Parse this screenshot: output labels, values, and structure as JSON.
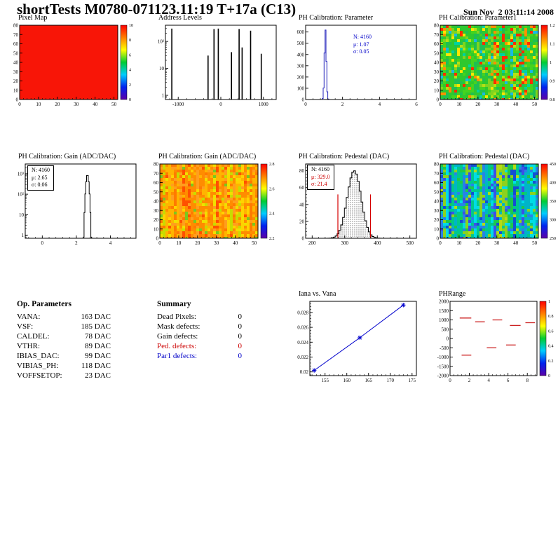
{
  "header": {
    "title": "shortTests M0780-071123.11:19 T+17a (C13)",
    "datetime": "Sun Nov  2 03:11:14 2008"
  },
  "chart_data": [
    {
      "id": "pixel_map",
      "type": "heatmap",
      "title": "Pixel Map",
      "x_range": [
        0,
        52
      ],
      "x_ticks": [
        0,
        10,
        20,
        30,
        40,
        50
      ],
      "y_range": [
        0,
        80
      ],
      "y_ticks": [
        0,
        10,
        20,
        30,
        40,
        50,
        60,
        70,
        80
      ],
      "fill": {
        "kind": "uniform",
        "color": "#f81507"
      },
      "colorbar_labels": [
        "10",
        "8",
        "6",
        "4",
        "2",
        "0"
      ],
      "description": "uniform red 52x80 pixel map (all pixels responding)"
    },
    {
      "id": "address_levels",
      "type": "spikes",
      "title": "Address Levels",
      "x_range": [
        -1300,
        1300
      ],
      "x_ticks": [
        -1000,
        0,
        1000
      ],
      "y_scale": "log",
      "y_range": [
        0.7,
        400
      ],
      "y_ticks": [
        1,
        10,
        100
      ],
      "spikes": [
        [
          -1150,
          300
        ],
        [
          -300,
          30
        ],
        [
          -160,
          290
        ],
        [
          -60,
          300
        ],
        [
          250,
          40
        ],
        [
          430,
          290
        ],
        [
          500,
          60
        ],
        [
          700,
          250
        ],
        [
          950,
          35
        ]
      ],
      "line_color": "#000000"
    },
    {
      "id": "ph_param",
      "type": "gauss_hist",
      "title": "PH Calibration: Parameter",
      "x_range": [
        0,
        6
      ],
      "x_ticks": [
        0,
        2,
        4,
        6
      ],
      "bins": 120,
      "y_range": [
        0,
        660
      ],
      "y_ticks": [
        0,
        100,
        200,
        300,
        400,
        500,
        600
      ],
      "gauss": {
        "mean": 1.07,
        "sigma": 0.05,
        "peak": 620
      },
      "line_color": "#2222bb",
      "stats": {
        "box": false,
        "lines": [
          {
            "text": "N: 4160",
            "color": "#0000c8"
          },
          {
            "text": "μ: 1.07",
            "color": "#0000c8"
          },
          {
            "text": "σ: 0.05",
            "color": "#0000c8"
          }
        ]
      }
    },
    {
      "id": "ph_param1_map",
      "type": "heatmap",
      "title": "PH Calibration: Parameter1",
      "x_range": [
        0,
        52
      ],
      "x_ticks": [
        0,
        10,
        20,
        30,
        40,
        50
      ],
      "y_range": [
        0,
        80
      ],
      "y_ticks": [
        0,
        10,
        20,
        30,
        40,
        50,
        60,
        70,
        80
      ],
      "fill": {
        "kind": "noise",
        "seed": 11,
        "stripe": 0.3,
        "colors": [
          "#2ec82e",
          "#45d31f",
          "#1fbf52",
          "#7fd41f",
          "#b4e014",
          "#ffe400",
          "#ff9000",
          "#ff2d00",
          "#00d2a0",
          "#18b8e6"
        ],
        "weights": [
          24,
          16,
          12,
          9,
          5,
          6,
          5,
          7,
          4,
          3
        ]
      },
      "colorbar_labels": [
        "1.2",
        "1.1",
        "1",
        "0.9",
        "0.8"
      ],
      "description": "noisy mostly-green map of parameter1 per pixel"
    },
    {
      "id": "gain_hist",
      "type": "gauss_hist",
      "title": "PH Calibration: Gain (ADC/DAC)",
      "x_range": [
        -1,
        5.5
      ],
      "x_ticks": [
        0,
        2,
        4
      ],
      "bins": 130,
      "y_scale": "log",
      "y_range": [
        0.7,
        3000
      ],
      "y_ticks": [
        1,
        10,
        100,
        1000
      ],
      "gauss": {
        "mean": 2.65,
        "sigma": 0.06,
        "peak": 900
      },
      "line_color": "#000000",
      "stats": {
        "box": true,
        "lines": [
          {
            "text": "N: 4160",
            "color": "#000000"
          },
          {
            "text": "μ: 2.65",
            "color": "#000000"
          },
          {
            "text": "σ: 0.06",
            "color": "#000000"
          }
        ]
      }
    },
    {
      "id": "gain_map",
      "type": "heatmap",
      "title": "PH Calibration: Gain (ADC/DAC)",
      "x_range": [
        0,
        52
      ],
      "x_ticks": [
        0,
        10,
        20,
        30,
        40,
        50
      ],
      "y_range": [
        0,
        80
      ],
      "y_ticks": [
        0,
        10,
        20,
        30,
        40,
        50,
        60,
        70,
        80
      ],
      "fill": {
        "kind": "noise",
        "seed": 23,
        "stripe": 0.5,
        "colors": [
          "#ff8c00",
          "#ff9e1e",
          "#ffb400",
          "#ff7a00",
          "#ffd200",
          "#f0e000",
          "#c8dc00",
          "#7ac81e",
          "#ff5000"
        ],
        "weights": [
          22,
          18,
          14,
          12,
          10,
          7,
          6,
          4,
          4
        ]
      },
      "colorbar_labels": [
        "2.8",
        "2.6",
        "2.4",
        "2.2"
      ],
      "description": "noisy orange/yellow map of gain per pixel"
    },
    {
      "id": "pedestal_hist",
      "type": "gauss_hist",
      "title": "PH Calibration: Pedestal (DAC)",
      "x_range": [
        180,
        520
      ],
      "x_ticks": [
        200,
        300,
        400,
        500
      ],
      "bins": 60,
      "y_range": [
        0,
        88
      ],
      "y_ticks": [
        0,
        20,
        40,
        60,
        80
      ],
      "gauss": {
        "mean": 329,
        "sigma": 21.4,
        "peak": 80
      },
      "fill_pattern": "dots",
      "line_color": "#000000",
      "red_lines": [
        {
          "x": 279,
          "h": 52
        },
        {
          "x": 379,
          "h": 52
        }
      ],
      "stats": {
        "box": true,
        "lines": [
          {
            "text": "N: 4160",
            "color": "#000000"
          },
          {
            "text": "μ: 329.0",
            "color": "#cc0000"
          },
          {
            "text": "σ: 21.4",
            "color": "#cc0000"
          }
        ]
      }
    },
    {
      "id": "pedestal_map",
      "type": "heatmap",
      "title": "PH Calibration: Pedestal (DAC)",
      "x_range": [
        0,
        52
      ],
      "x_ticks": [
        0,
        10,
        20,
        30,
        40,
        50
      ],
      "y_range": [
        0,
        80
      ],
      "y_ticks": [
        0,
        10,
        20,
        30,
        40,
        50,
        60,
        70,
        80
      ],
      "fill": {
        "kind": "noise",
        "seed": 37,
        "stripe": 0.6,
        "colors": [
          "#1ec84b",
          "#00c88c",
          "#00b4c8",
          "#2882e6",
          "#1450d2",
          "#8cd21e",
          "#00dce6",
          "#3c50e6",
          "#b4dc14"
        ],
        "weights": [
          18,
          14,
          14,
          12,
          8,
          9,
          10,
          6,
          5
        ]
      },
      "colorbar_labels": [
        "450",
        "400",
        "350",
        "300",
        "250"
      ],
      "description": "noisy green/cyan/blue striped map of pedestal per pixel"
    },
    {
      "id": "op_parameters",
      "type": "table",
      "title": "Op. Parameters",
      "rows": [
        {
          "label": "VANA:",
          "value": "163 DAC"
        },
        {
          "label": "VSF:",
          "value": "185 DAC"
        },
        {
          "label": "CALDEL:",
          "value": "78 DAC"
        },
        {
          "label": "VTHR:",
          "value": "89 DAC"
        },
        {
          "label": "IBIAS_DAC:",
          "value": "99 DAC"
        },
        {
          "label": "VIBIAS_PH:",
          "value": "118 DAC"
        },
        {
          "label": "VOFFSETOP:",
          "value": "23 DAC"
        }
      ]
    },
    {
      "id": "summary",
      "type": "table",
      "title": "Summary",
      "rows": [
        {
          "label": "Dead Pixels:",
          "value": "0",
          "color": "#000000"
        },
        {
          "label": "Mask defects:",
          "value": "0",
          "color": "#000000"
        },
        {
          "label": "Gain defects:",
          "value": "0",
          "color": "#000000"
        },
        {
          "label": "Ped. defects:",
          "value": "0",
          "color": "#cc0000"
        },
        {
          "label": "Par1 defects:",
          "value": "0",
          "color": "#0000c8"
        }
      ]
    },
    {
      "id": "iana",
      "type": "line",
      "title": "Iana vs. Vana",
      "x_range": [
        151.5,
        176
      ],
      "x_ticks": [
        155,
        160,
        165,
        170,
        175
      ],
      "y_range": [
        0.0195,
        0.0295
      ],
      "y_ticks": [
        0.02,
        0.022,
        0.024,
        0.026,
        0.028
      ],
      "points": [
        [
          152.5,
          0.0202
        ],
        [
          163,
          0.0246
        ],
        [
          173,
          0.029
        ]
      ],
      "line_color": "#0000cc",
      "marker": "star"
    },
    {
      "id": "phrange",
      "type": "segments",
      "title": "PHRange",
      "x_range": [
        0,
        9
      ],
      "x_ticks": [
        0,
        2,
        4,
        6,
        8
      ],
      "y_range": [
        -2000,
        2000
      ],
      "y_ticks": [
        2000,
        1500,
        1000,
        500,
        0,
        -500,
        -1000,
        -1500,
        -2000
      ],
      "segments": [
        [
          1.0,
          2.2,
          1100
        ],
        [
          2.6,
          3.6,
          900
        ],
        [
          4.4,
          5.4,
          1000
        ],
        [
          6.2,
          7.3,
          700
        ],
        [
          7.8,
          8.8,
          850
        ],
        [
          1.2,
          2.2,
          -900
        ],
        [
          3.8,
          4.8,
          -500
        ],
        [
          5.8,
          6.8,
          -350
        ]
      ],
      "line_color": "#cc2222",
      "colorbar_labels": [
        "1",
        "0.8",
        "0.6",
        "0.4",
        "0.2",
        "0"
      ]
    }
  ]
}
